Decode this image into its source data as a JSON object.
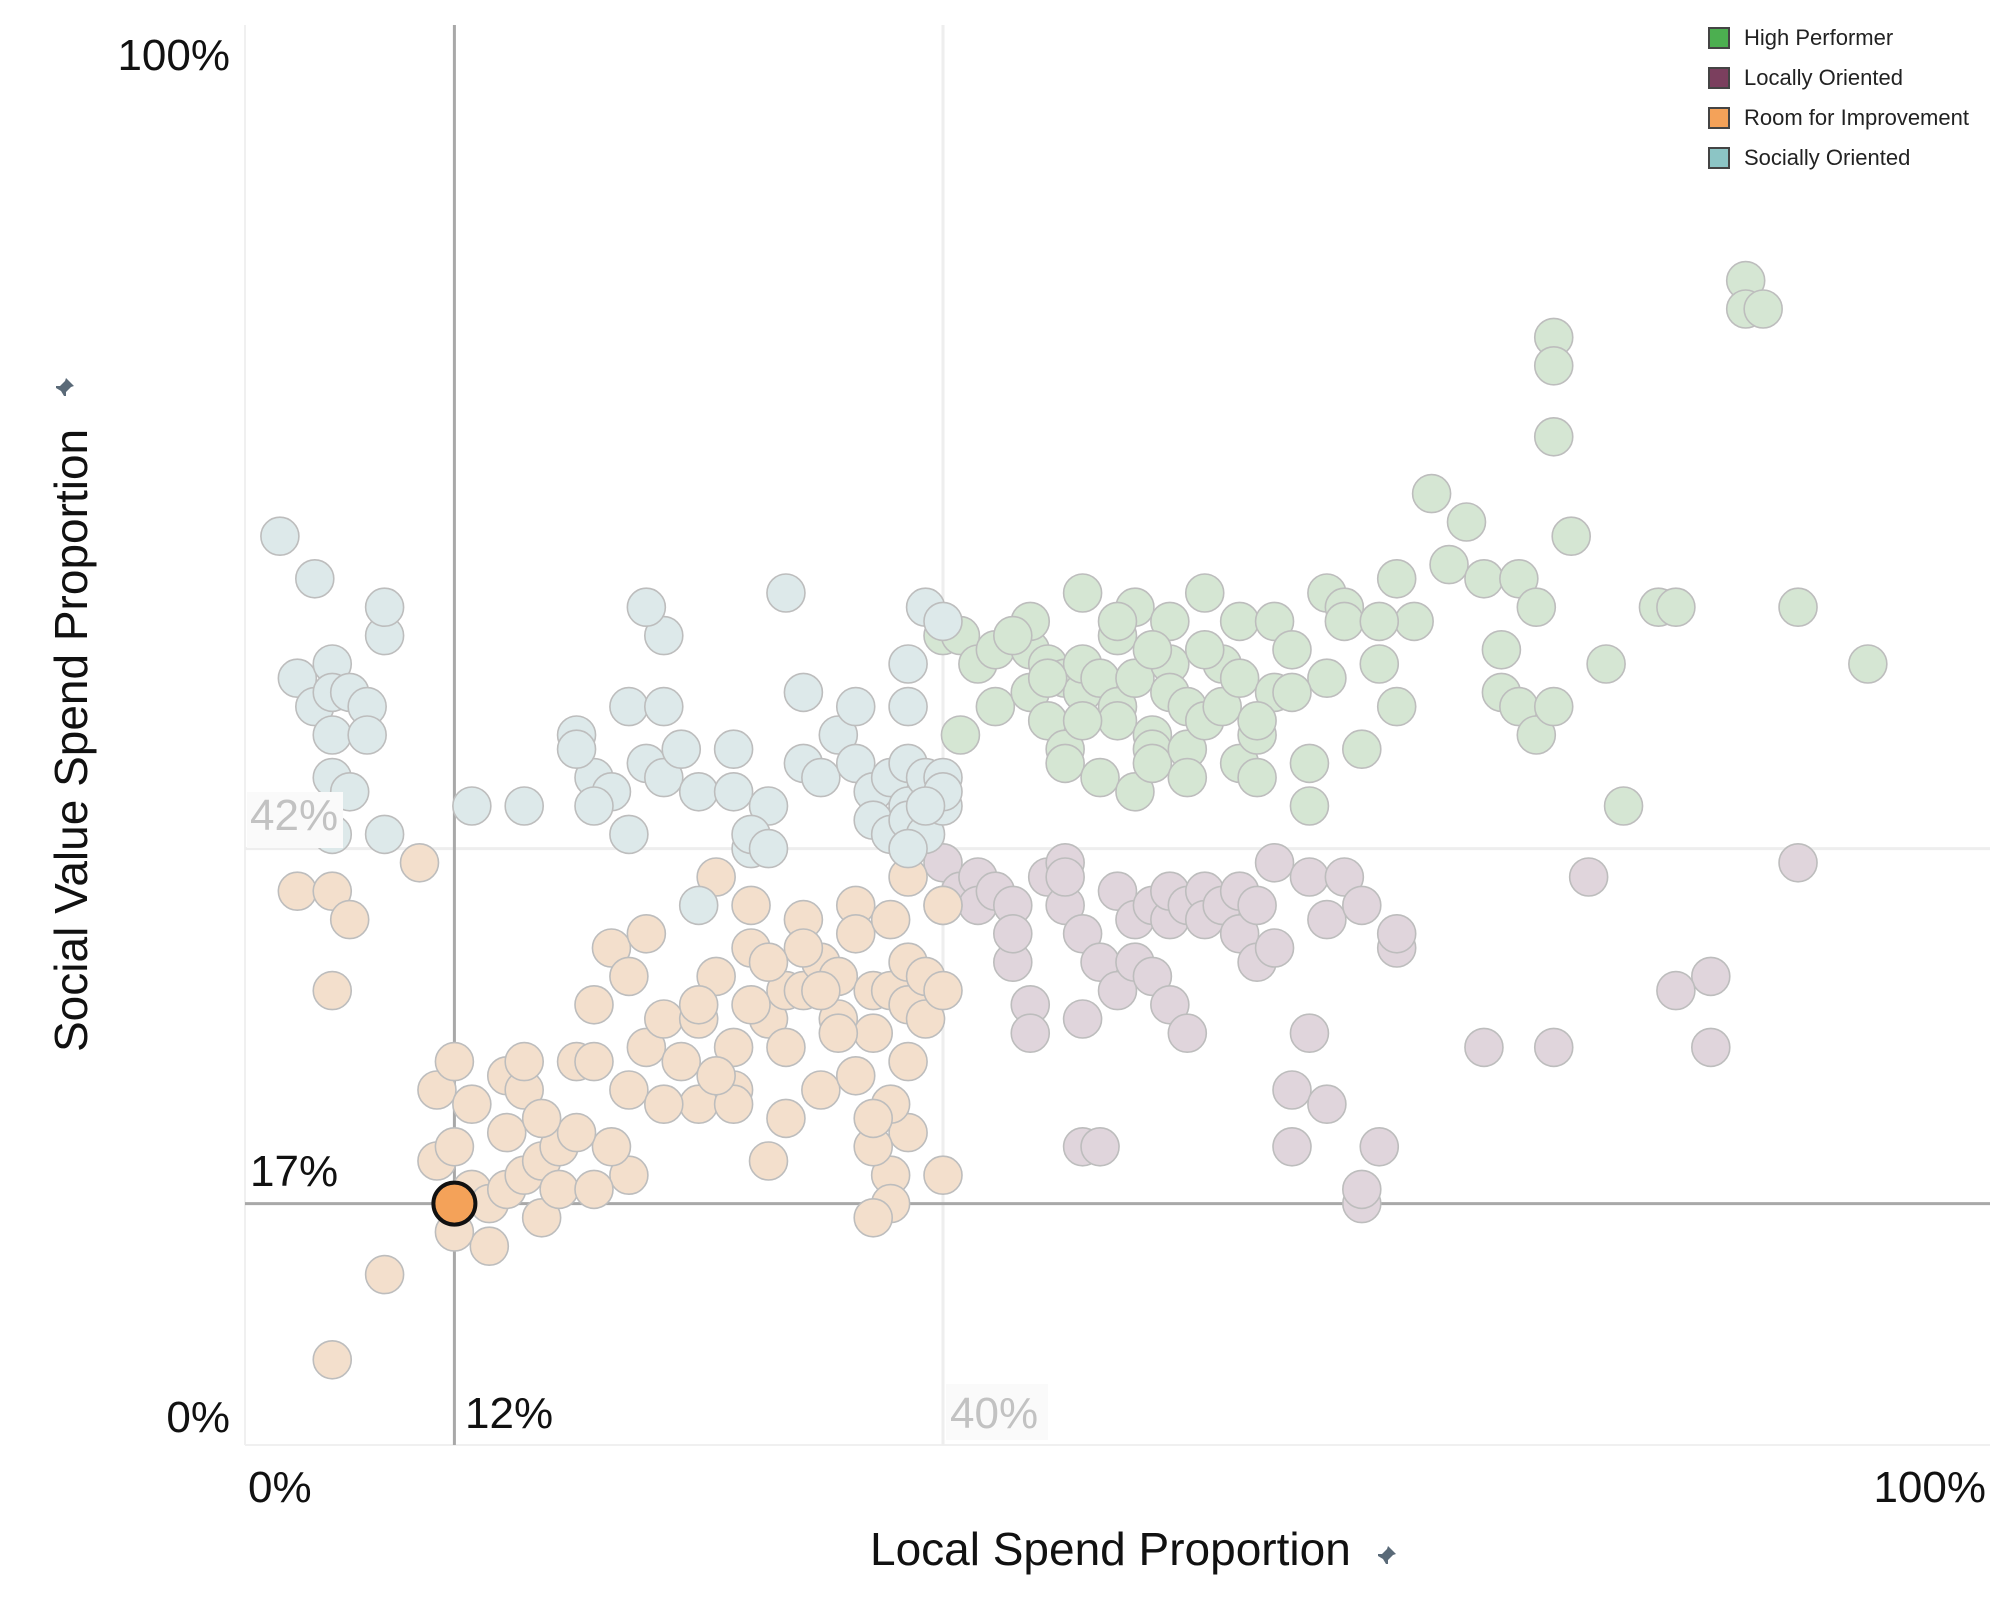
{
  "chart_data": {
    "type": "scatter",
    "xlabel": "Local Spend Proportion",
    "ylabel": "Social Value Spend Proportion",
    "xlim": [
      0,
      100
    ],
    "ylim": [
      0,
      100
    ],
    "x_ticks": [
      "0%",
      "100%"
    ],
    "y_ticks": [
      "0%",
      "100%"
    ],
    "reference_lines": {
      "x_value": 12,
      "x_label": "12%",
      "y_value": 17,
      "y_label": "17%",
      "x_secondary": 40,
      "x_secondary_label": "40%",
      "y_secondary": 42,
      "y_secondary_label": "42%"
    },
    "legend_position": "top-right",
    "highlighted_point": {
      "x": 12,
      "y": 17,
      "category": "Room for Improvement"
    },
    "series": [
      {
        "name": "High Performer",
        "color": "#4caf50",
        "faded": "#d5e6d3",
        "points": [
          [
            40,
            57
          ],
          [
            41,
            57
          ],
          [
            41,
            50
          ],
          [
            42,
            55
          ],
          [
            43,
            52
          ],
          [
            43,
            56
          ],
          [
            45,
            53
          ],
          [
            45,
            56
          ],
          [
            46,
            55
          ],
          [
            45,
            58
          ],
          [
            47,
            54
          ],
          [
            46,
            51
          ],
          [
            47,
            49
          ],
          [
            47,
            48
          ],
          [
            48,
            53
          ],
          [
            48,
            55
          ],
          [
            48,
            60
          ],
          [
            49,
            47
          ],
          [
            49,
            54
          ],
          [
            50,
            52
          ],
          [
            50,
            51
          ],
          [
            51,
            59
          ],
          [
            50,
            57
          ],
          [
            51,
            54
          ],
          [
            52,
            50
          ],
          [
            51,
            46
          ],
          [
            52,
            49
          ],
          [
            53,
            55
          ],
          [
            52,
            48
          ],
          [
            53,
            53
          ],
          [
            53,
            58
          ],
          [
            54,
            52
          ],
          [
            54,
            49
          ],
          [
            55,
            51
          ],
          [
            54,
            47
          ],
          [
            55,
            60
          ],
          [
            56,
            55
          ],
          [
            56,
            52
          ],
          [
            57,
            54
          ],
          [
            57,
            58
          ],
          [
            57,
            48
          ],
          [
            58,
            50
          ],
          [
            58,
            47
          ],
          [
            59,
            58
          ],
          [
            60,
            56
          ],
          [
            59,
            53
          ],
          [
            61,
            48
          ],
          [
            61,
            45
          ],
          [
            62,
            60
          ],
          [
            62,
            54
          ],
          [
            63,
            59
          ],
          [
            64,
            49
          ],
          [
            65,
            55
          ],
          [
            66,
            61
          ],
          [
            67,
            58
          ],
          [
            68,
            67
          ],
          [
            69,
            62
          ],
          [
            70,
            65
          ],
          [
            71,
            61
          ],
          [
            72,
            56
          ],
          [
            72,
            53
          ],
          [
            73,
            52
          ],
          [
            73,
            61
          ],
          [
            74,
            59
          ],
          [
            74,
            50
          ],
          [
            75,
            71
          ],
          [
            75,
            52
          ],
          [
            76,
            64
          ],
          [
            78,
            55
          ],
          [
            79,
            45
          ],
          [
            81,
            59
          ],
          [
            82,
            59
          ],
          [
            75,
            78
          ],
          [
            75,
            76
          ],
          [
            86,
            82
          ],
          [
            86,
            80
          ],
          [
            87,
            80
          ],
          [
            89,
            59
          ],
          [
            93,
            55
          ],
          [
            44,
            57
          ],
          [
            46,
            54
          ],
          [
            48,
            51
          ],
          [
            50,
            58
          ],
          [
            52,
            56
          ],
          [
            55,
            56
          ],
          [
            58,
            51
          ],
          [
            60,
            53
          ],
          [
            63,
            58
          ],
          [
            65,
            58
          ],
          [
            66,
            52
          ]
        ]
      },
      {
        "name": "Locally Oriented",
        "color": "#7b3f5e",
        "faded": "#e0d5dc",
        "points": [
          [
            40,
            41
          ],
          [
            41,
            39
          ],
          [
            42,
            40
          ],
          [
            42,
            38
          ],
          [
            43,
            39
          ],
          [
            44,
            38
          ],
          [
            44,
            34
          ],
          [
            44,
            36
          ],
          [
            45,
            31
          ],
          [
            45,
            29
          ],
          [
            46,
            40
          ],
          [
            47,
            41
          ],
          [
            47,
            38
          ],
          [
            47,
            40
          ],
          [
            48,
            36
          ],
          [
            48,
            30
          ],
          [
            48,
            21
          ],
          [
            49,
            34
          ],
          [
            49,
            21
          ],
          [
            50,
            39
          ],
          [
            50,
            32
          ],
          [
            51,
            37
          ],
          [
            51,
            34
          ],
          [
            52,
            33
          ],
          [
            52,
            38
          ],
          [
            53,
            37
          ],
          [
            53,
            39
          ],
          [
            53,
            31
          ],
          [
            54,
            38
          ],
          [
            54,
            29
          ],
          [
            55,
            39
          ],
          [
            55,
            37
          ],
          [
            56,
            38
          ],
          [
            57,
            36
          ],
          [
            57,
            39
          ],
          [
            58,
            34
          ],
          [
            58,
            38
          ],
          [
            59,
            41
          ],
          [
            59,
            35
          ],
          [
            60,
            25
          ],
          [
            61,
            40
          ],
          [
            61,
            29
          ],
          [
            62,
            24
          ],
          [
            62,
            37
          ],
          [
            63,
            40
          ],
          [
            64,
            38
          ],
          [
            66,
            35
          ],
          [
            66,
            36
          ],
          [
            64,
            17
          ],
          [
            65,
            21
          ],
          [
            64,
            18
          ],
          [
            60,
            21
          ],
          [
            84,
            33
          ],
          [
            84,
            28
          ],
          [
            89,
            41
          ],
          [
            82,
            32
          ],
          [
            75,
            28
          ],
          [
            77,
            40
          ],
          [
            71,
            28
          ]
        ]
      },
      {
        "name": "Room for Improvement",
        "color": "#f4a259",
        "faded": "#f3dfcc",
        "points": [
          [
            12,
            17
          ],
          [
            11,
            20
          ],
          [
            11,
            25
          ],
          [
            12,
            21
          ],
          [
            12,
            27
          ],
          [
            13,
            18
          ],
          [
            13,
            24
          ],
          [
            14,
            17
          ],
          [
            14,
            14
          ],
          [
            15,
            18
          ],
          [
            15,
            22
          ],
          [
            15,
            26
          ],
          [
            16,
            25
          ],
          [
            16,
            19
          ],
          [
            17,
            20
          ],
          [
            17,
            16
          ],
          [
            18,
            18
          ],
          [
            18,
            21
          ],
          [
            19,
            27
          ],
          [
            20,
            31
          ],
          [
            20,
            27
          ],
          [
            21,
            35
          ],
          [
            22,
            25
          ],
          [
            22,
            33
          ],
          [
            23,
            28
          ],
          [
            23,
            36
          ],
          [
            24,
            30
          ],
          [
            25,
            27
          ],
          [
            26,
            30
          ],
          [
            26,
            24
          ],
          [
            27,
            33
          ],
          [
            27,
            40
          ],
          [
            28,
            28
          ],
          [
            28,
            25
          ],
          [
            29,
            35
          ],
          [
            29,
            38
          ],
          [
            30,
            30
          ],
          [
            30,
            20
          ],
          [
            31,
            32
          ],
          [
            31,
            23
          ],
          [
            32,
            37
          ],
          [
            32,
            32
          ],
          [
            33,
            34
          ],
          [
            33,
            25
          ],
          [
            34,
            33
          ],
          [
            34,
            30
          ],
          [
            35,
            38
          ],
          [
            35,
            36
          ],
          [
            36,
            29
          ],
          [
            36,
            32
          ],
          [
            37,
            37
          ],
          [
            37,
            32
          ],
          [
            38,
            34
          ],
          [
            38,
            31
          ],
          [
            39,
            33
          ],
          [
            39,
            30
          ],
          [
            40,
            38
          ],
          [
            40,
            32
          ],
          [
            40,
            38
          ],
          [
            38,
            40
          ],
          [
            38,
            22
          ],
          [
            37,
            19
          ],
          [
            37,
            24
          ],
          [
            38,
            27
          ],
          [
            36,
            21
          ],
          [
            37,
            17
          ],
          [
            36,
            23
          ],
          [
            35,
            26
          ],
          [
            34,
            29
          ],
          [
            33,
            32
          ],
          [
            32,
            35
          ],
          [
            31,
            28
          ],
          [
            30,
            34
          ],
          [
            29,
            31
          ],
          [
            28,
            24
          ],
          [
            27,
            26
          ],
          [
            26,
            31
          ],
          [
            24,
            24
          ],
          [
            22,
            19
          ],
          [
            21,
            21
          ],
          [
            20,
            18
          ],
          [
            19,
            22
          ],
          [
            17,
            23
          ],
          [
            16,
            27
          ],
          [
            3,
            39
          ],
          [
            5,
            39
          ],
          [
            6,
            37
          ],
          [
            5,
            32
          ],
          [
            8,
            12
          ],
          [
            5,
            6
          ],
          [
            40,
            19
          ],
          [
            36,
            16
          ],
          [
            10,
            41
          ],
          [
            12,
            15
          ]
        ]
      },
      {
        "name": "Socially Oriented",
        "color": "#8cc5c5",
        "faded": "#dde9ea",
        "points": [
          [
            2,
            64
          ],
          [
            4,
            61
          ],
          [
            3,
            54
          ],
          [
            4,
            52
          ],
          [
            5,
            55
          ],
          [
            5,
            53
          ],
          [
            5,
            50
          ],
          [
            5,
            47
          ],
          [
            5,
            43
          ],
          [
            6,
            46
          ],
          [
            6,
            53
          ],
          [
            7,
            52
          ],
          [
            7,
            50
          ],
          [
            8,
            57
          ],
          [
            8,
            43
          ],
          [
            8,
            59
          ],
          [
            13,
            45
          ],
          [
            16,
            45
          ],
          [
            19,
            50
          ],
          [
            20,
            47
          ],
          [
            21,
            46
          ],
          [
            22,
            43
          ],
          [
            23,
            48
          ],
          [
            24,
            57
          ],
          [
            24,
            47
          ],
          [
            25,
            49
          ],
          [
            26,
            46
          ],
          [
            28,
            46
          ],
          [
            28,
            49
          ],
          [
            29,
            42
          ],
          [
            30,
            45
          ],
          [
            31,
            60
          ],
          [
            32,
            48
          ],
          [
            33,
            47
          ],
          [
            34,
            50
          ],
          [
            35,
            48
          ],
          [
            35,
            52
          ],
          [
            36,
            46
          ],
          [
            36,
            44
          ],
          [
            37,
            47
          ],
          [
            37,
            43
          ],
          [
            38,
            48
          ],
          [
            38,
            45
          ],
          [
            38,
            44
          ],
          [
            39,
            43
          ],
          [
            39,
            47
          ],
          [
            40,
            45
          ],
          [
            40,
            47
          ],
          [
            38,
            52
          ],
          [
            38,
            55
          ],
          [
            39,
            59
          ],
          [
            40,
            58
          ],
          [
            40,
            46
          ],
          [
            26,
            38
          ],
          [
            29,
            43
          ],
          [
            30,
            42
          ],
          [
            32,
            53
          ],
          [
            22,
            52
          ],
          [
            24,
            52
          ],
          [
            20,
            45
          ],
          [
            19,
            49
          ],
          [
            23,
            59
          ],
          [
            39,
            45
          ],
          [
            38,
            42
          ]
        ]
      }
    ]
  }
}
